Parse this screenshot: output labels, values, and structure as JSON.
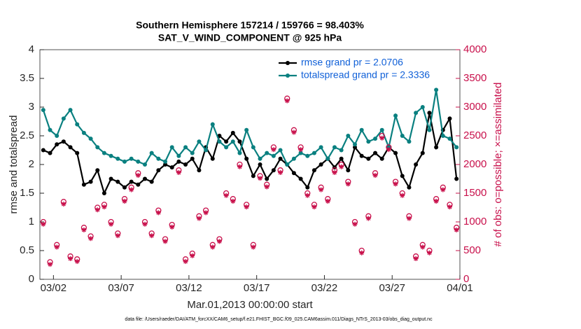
{
  "chart_data": {
    "type": "line",
    "title": "Southern Hemisphere 157214 / 159766 = 98.403%",
    "subtitle": "SAT_V_WIND_COMPONENT @ 925 hPa",
    "x_label": "Mar.01,2013 00:00:00 start",
    "y_label": "rmse and totalspread",
    "y2_label": "# of obs: o=possible; ×=assimilated",
    "footnote": "data file: /Users/raeder/DAI/ATM_forcXX/CAM6_setup/f.e21.FHIST_BGC.f09_025.CAM6assim.011/Diags_NTrS_2013-03/obs_diag_output.nc",
    "x": [
      "2013-03-01T06:00",
      "2013-03-01T18:00",
      "2013-03-02T06:00",
      "2013-03-02T18:00",
      "2013-03-03T06:00",
      "2013-03-03T18:00",
      "2013-03-04T06:00",
      "2013-03-04T18:00",
      "2013-03-05T06:00",
      "2013-03-05T18:00",
      "2013-03-06T06:00",
      "2013-03-06T18:00",
      "2013-03-07T06:00",
      "2013-03-07T18:00",
      "2013-03-08T06:00",
      "2013-03-08T18:00",
      "2013-03-09T06:00",
      "2013-03-09T18:00",
      "2013-03-10T06:00",
      "2013-03-10T18:00",
      "2013-03-11T06:00",
      "2013-03-11T18:00",
      "2013-03-12T06:00",
      "2013-03-12T18:00",
      "2013-03-13T06:00",
      "2013-03-13T18:00",
      "2013-03-14T06:00",
      "2013-03-14T18:00",
      "2013-03-15T06:00",
      "2013-03-15T18:00",
      "2013-03-16T06:00",
      "2013-03-16T18:00",
      "2013-03-17T06:00",
      "2013-03-17T18:00",
      "2013-03-18T06:00",
      "2013-03-18T18:00",
      "2013-03-19T06:00",
      "2013-03-19T18:00",
      "2013-03-20T06:00",
      "2013-03-20T18:00",
      "2013-03-21T06:00",
      "2013-03-21T18:00",
      "2013-03-22T06:00",
      "2013-03-22T18:00",
      "2013-03-23T06:00",
      "2013-03-23T18:00",
      "2013-03-24T06:00",
      "2013-03-24T18:00",
      "2013-03-25T06:00",
      "2013-03-25T18:00",
      "2013-03-26T06:00",
      "2013-03-26T18:00",
      "2013-03-27T06:00",
      "2013-03-27T18:00",
      "2013-03-28T06:00",
      "2013-03-28T18:00",
      "2013-03-29T06:00",
      "2013-03-29T18:00",
      "2013-03-30T06:00",
      "2013-03-30T18:00",
      "2013-03-31T06:00",
      "2013-03-31T18:00"
    ],
    "xlim": [
      "2013-03-01T00:00",
      "2013-04-01T00:00"
    ],
    "xticks": [
      {
        "value": "2013-03-02T00:00",
        "label": "03/02"
      },
      {
        "value": "2013-03-07T00:00",
        "label": "03/07"
      },
      {
        "value": "2013-03-12T00:00",
        "label": "03/12"
      },
      {
        "value": "2013-03-17T00:00",
        "label": "03/17"
      },
      {
        "value": "2013-03-22T00:00",
        "label": "03/22"
      },
      {
        "value": "2013-03-27T00:00",
        "label": "03/27"
      },
      {
        "value": "2013-04-01T00:00",
        "label": "04/01"
      }
    ],
    "ylim": [
      0,
      4
    ],
    "yticks": [
      0,
      0.5,
      1,
      1.5,
      2,
      2.5,
      3,
      3.5,
      4
    ],
    "y2lim": [
      0,
      4000
    ],
    "y2ticks": [
      0,
      500,
      1000,
      1500,
      2000,
      2500,
      3000,
      3500,
      4000
    ],
    "y2color": "#c8104b",
    "legend": "upper right",
    "series": [
      {
        "name": "rmse grand pr = 2.0706",
        "color": "#000000",
        "marker": "circle",
        "line": true,
        "values": [
          2.25,
          2.2,
          2.35,
          2.4,
          2.3,
          2.2,
          1.65,
          1.7,
          1.9,
          1.5,
          1.75,
          1.7,
          1.6,
          1.7,
          1.65,
          1.75,
          1.7,
          1.9,
          2.0,
          1.95,
          2.05,
          2.0,
          2.1,
          1.9,
          2.3,
          2.1,
          2.5,
          2.4,
          2.55,
          2.4,
          2.1,
          1.8,
          2.0,
          1.75,
          1.9,
          2.1,
          2.0,
          1.85,
          1.75,
          1.6,
          1.9,
          2.0,
          2.1,
          1.95,
          2.1,
          1.9,
          2.3,
          2.15,
          2.1,
          2.2,
          2.1,
          2.3,
          2.2,
          1.8,
          1.6,
          2.0,
          2.2,
          2.9,
          2.3,
          2.6,
          2.8,
          1.75
        ]
      },
      {
        "name": "totalspread grand pr = 2.3336",
        "color": "#0a8080",
        "marker": "circle",
        "line": true,
        "values": [
          2.95,
          2.6,
          2.5,
          2.8,
          2.95,
          2.7,
          2.55,
          2.45,
          2.3,
          2.2,
          2.15,
          2.1,
          2.05,
          2.1,
          2.05,
          2.0,
          2.2,
          2.1,
          2.05,
          2.3,
          2.15,
          2.3,
          2.2,
          2.4,
          2.25,
          2.7,
          2.4,
          2.3,
          2.4,
          2.2,
          2.6,
          2.3,
          2.1,
          2.2,
          2.15,
          2.25,
          2.0,
          2.1,
          2.2,
          2.15,
          2.2,
          2.3,
          2.1,
          2.3,
          2.25,
          2.5,
          2.35,
          2.6,
          2.4,
          2.45,
          2.6,
          2.3,
          2.85,
          2.5,
          2.4,
          2.9,
          3.0,
          2.6,
          3.3,
          2.5,
          2.45,
          2.3
        ]
      },
      {
        "color": "#c8104b",
        "marker": "circle",
        "line": false,
        "axis": "y2",
        "values": [
          1000,
          300,
          600,
          1350,
          400,
          350,
          900,
          750,
          1250,
          1300,
          1000,
          800,
          1400,
          1600,
          1850,
          1000,
          800,
          1200,
          700,
          950,
          1900,
          350,
          450,
          1100,
          1200,
          600,
          700,
          1500,
          1400,
          2000,
          1300,
          600,
          1800,
          1650,
          2300,
          1900,
          3150,
          2600,
          2300,
          1500,
          1300,
          1600,
          1400,
          1900,
          2000,
          1700,
          1000,
          500,
          1100,
          1850,
          2500,
          2300,
          1700,
          1500,
          1100,
          400,
          600,
          500,
          1400,
          1600,
          1300,
          900
        ]
      },
      {
        "color": "#c8104b",
        "marker": "x",
        "line": false,
        "axis": "y2",
        "values": [
          960,
          260,
          560,
          1310,
          360,
          310,
          860,
          710,
          1210,
          1260,
          960,
          760,
          1360,
          1560,
          1810,
          960,
          760,
          1160,
          660,
          910,
          1860,
          310,
          410,
          1060,
          1160,
          560,
          660,
          1460,
          1360,
          1960,
          1260,
          560,
          1760,
          1610,
          2260,
          1860,
          3110,
          2560,
          2260,
          1460,
          1260,
          1560,
          1360,
          1860,
          1960,
          1660,
          960,
          460,
          1060,
          1810,
          2460,
          2260,
          1660,
          1460,
          1060,
          360,
          560,
          460,
          1360,
          1560,
          1260,
          860
        ]
      }
    ]
  }
}
